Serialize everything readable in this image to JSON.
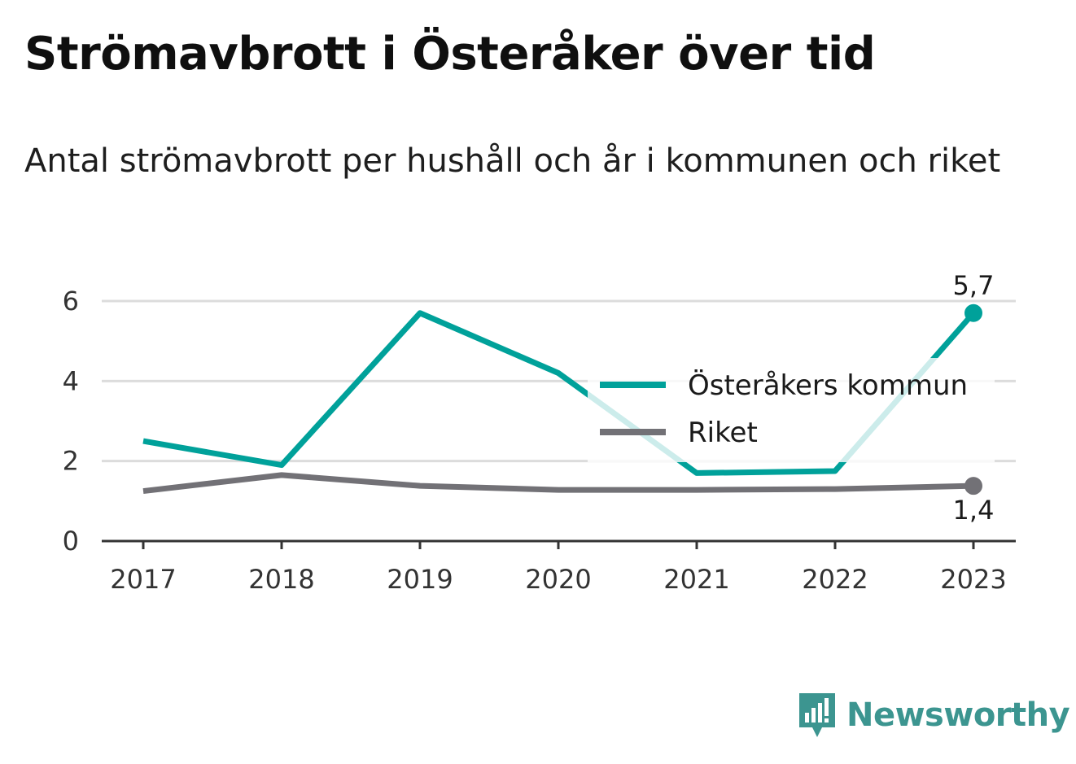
{
  "header": {
    "title": "Strömavbrott i Österåker över tid",
    "subtitle": "Antal strömavbrott per hushåll och år i kommunen och riket"
  },
  "brand": {
    "name": "Newsworthy",
    "icon": "newsworthy-logo-icon",
    "color": "#3c9590"
  },
  "chart_data": {
    "type": "line",
    "title": "Strömavbrott i Österåker över tid",
    "subtitle": "Antal strömavbrott per hushåll och år i kommunen och riket",
    "xlabel": "",
    "ylabel": "",
    "categories": [
      "2017",
      "2018",
      "2019",
      "2020",
      "2021",
      "2022",
      "2023"
    ],
    "ylim": [
      0,
      6
    ],
    "yticks": [
      "0",
      "2",
      "4",
      "6"
    ],
    "grid": true,
    "legend_position": "center-right",
    "series": [
      {
        "name": "Österåkers kommun",
        "color": "#00a19a",
        "values": [
          2.5,
          1.9,
          5.7,
          4.2,
          1.7,
          1.75,
          5.7
        ],
        "end_label": "5,7"
      },
      {
        "name": "Riket",
        "color": "#727176",
        "values": [
          1.25,
          1.65,
          1.38,
          1.28,
          1.28,
          1.3,
          1.38
        ],
        "end_label": "1,4"
      }
    ]
  }
}
